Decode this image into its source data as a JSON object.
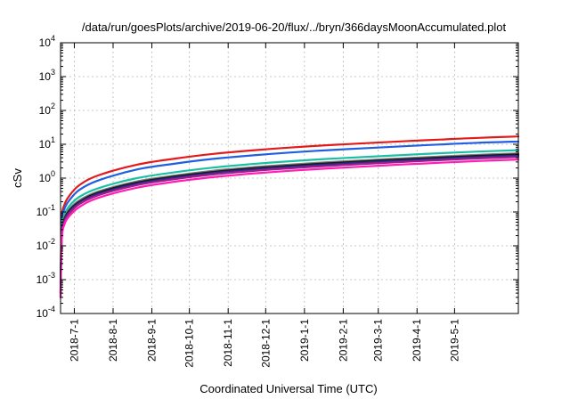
{
  "chart_data": {
    "type": "line",
    "title": "/data/run/goesPlots/archive/2019-06-20/flux/../bryn/366daysMoonAccumulated.plot",
    "xlabel": "Coordinated Universal Time (UTC)",
    "ylabel": "cSv",
    "y_scale": "log",
    "ylim": [
      0.0001,
      10000
    ],
    "xlim": [
      "2018-06-20",
      "2019-06-21"
    ],
    "grid": true,
    "legend": "none",
    "y_ticks": [
      {
        "value": 0.0001,
        "base": "10",
        "exp": "-4"
      },
      {
        "value": 0.001,
        "base": "10",
        "exp": "-3"
      },
      {
        "value": 0.01,
        "base": "10",
        "exp": "-2"
      },
      {
        "value": 0.1,
        "base": "10",
        "exp": "-1"
      },
      {
        "value": 1,
        "base": "10",
        "exp": "0"
      },
      {
        "value": 10,
        "base": "10",
        "exp": "1"
      },
      {
        "value": 100,
        "base": "10",
        "exp": "2"
      },
      {
        "value": 1000,
        "base": "10",
        "exp": "3"
      },
      {
        "value": 10000,
        "base": "10",
        "exp": "4"
      }
    ],
    "x_ticks": [
      {
        "date": "2018-07-01",
        "label": "2018-7-1"
      },
      {
        "date": "2018-08-01",
        "label": "2018-8-1"
      },
      {
        "date": "2018-09-01",
        "label": "2018-9-1"
      },
      {
        "date": "2018-10-01",
        "label": "2018-10-1"
      },
      {
        "date": "2018-11-01",
        "label": "2018-11-1"
      },
      {
        "date": "2018-12-01",
        "label": "2018-12-1"
      },
      {
        "date": "2019-01-01",
        "label": "2019-1-1"
      },
      {
        "date": "2019-02-01",
        "label": "2019-2-1"
      },
      {
        "date": "2019-03-01",
        "label": "2019-3-1"
      },
      {
        "date": "2019-04-01",
        "label": "2019-4-1"
      },
      {
        "date": "2019-05-01",
        "label": "2019-5-1"
      }
    ],
    "series": [
      {
        "color": "#e31a1c",
        "x": [
          "2018-06-20",
          "2018-06-21",
          "2018-06-23",
          "2018-06-27",
          "2018-07-05",
          "2018-07-20",
          "2018-08-20",
          "2018-09-20",
          "2018-10-20",
          "2018-11-20",
          "2018-12-20",
          "2019-01-20",
          "2019-02-20",
          "2019-03-20",
          "2019-04-20",
          "2019-05-20",
          "2019-06-21"
        ],
        "values": [
          0.0008,
          0.06,
          0.16,
          0.3,
          0.62,
          1.2,
          2.5,
          3.8,
          5.2,
          6.6,
          8.0,
          9.4,
          10.8,
          12.2,
          13.8,
          15.5,
          17.0
        ]
      },
      {
        "color": "#1f5fe0",
        "x": [
          "2018-06-20",
          "2018-06-21",
          "2018-06-23",
          "2018-06-27",
          "2018-07-05",
          "2018-07-20",
          "2018-08-20",
          "2018-09-20",
          "2018-10-20",
          "2018-11-20",
          "2018-12-20",
          "2019-01-20",
          "2019-02-20",
          "2019-03-20",
          "2019-04-20",
          "2019-05-20",
          "2019-06-21"
        ],
        "values": [
          0.0006,
          0.045,
          0.12,
          0.22,
          0.45,
          0.85,
          1.8,
          2.7,
          3.7,
          4.7,
          5.7,
          6.7,
          7.7,
          8.7,
          9.9,
          11.1,
          12.0
        ]
      },
      {
        "color": "#1cbfa6",
        "x": [
          "2018-06-20",
          "2018-06-21",
          "2018-06-23",
          "2018-06-27",
          "2018-07-05",
          "2018-07-20",
          "2018-08-20",
          "2018-09-20",
          "2018-10-20",
          "2018-11-20",
          "2018-12-20",
          "2019-01-20",
          "2019-02-20",
          "2019-03-20",
          "2019-04-20",
          "2019-05-20",
          "2019-06-21"
        ],
        "values": [
          0.0005,
          0.03,
          0.08,
          0.15,
          0.28,
          0.5,
          1.0,
          1.5,
          2.05,
          2.6,
          3.15,
          3.7,
          4.25,
          4.8,
          5.45,
          6.1,
          6.7
        ]
      },
      {
        "color": "#7a7a7a",
        "x": [
          "2018-06-20",
          "2018-06-21",
          "2018-06-23",
          "2018-06-27",
          "2018-07-05",
          "2018-07-20",
          "2018-08-20",
          "2018-09-20",
          "2018-10-20",
          "2018-11-20",
          "2018-12-20",
          "2019-01-20",
          "2019-02-20",
          "2019-03-20",
          "2019-04-20",
          "2019-05-20",
          "2019-06-21"
        ],
        "values": [
          0.0004,
          0.024,
          0.065,
          0.12,
          0.22,
          0.4,
          0.8,
          1.2,
          1.65,
          2.1,
          2.5,
          2.95,
          3.4,
          3.85,
          4.35,
          4.9,
          5.4
        ]
      },
      {
        "color": "#1a1a1a",
        "x": [
          "2018-06-20",
          "2018-06-21",
          "2018-06-23",
          "2018-06-27",
          "2018-07-05",
          "2018-07-20",
          "2018-08-20",
          "2018-09-20",
          "2018-10-20",
          "2018-11-20",
          "2018-12-20",
          "2019-01-20",
          "2019-02-20",
          "2019-03-20",
          "2019-04-20",
          "2019-05-20",
          "2019-06-21"
        ],
        "values": [
          0.0004,
          0.022,
          0.06,
          0.11,
          0.2,
          0.37,
          0.74,
          1.12,
          1.52,
          1.94,
          2.32,
          2.74,
          3.16,
          3.58,
          4.05,
          4.55,
          5.0
        ]
      },
      {
        "color": "#2c2a8c",
        "x": [
          "2018-06-20",
          "2018-06-21",
          "2018-06-23",
          "2018-06-27",
          "2018-07-05",
          "2018-07-20",
          "2018-08-20",
          "2018-09-20",
          "2018-10-20",
          "2018-11-20",
          "2018-12-20",
          "2019-01-20",
          "2019-02-20",
          "2019-03-20",
          "2019-04-20",
          "2019-05-20",
          "2019-06-21"
        ],
        "values": [
          0.0004,
          0.02,
          0.055,
          0.1,
          0.185,
          0.34,
          0.68,
          1.03,
          1.4,
          1.78,
          2.14,
          2.52,
          2.9,
          3.3,
          3.73,
          4.2,
          4.6
        ]
      },
      {
        "color": "#a01d8a",
        "x": [
          "2018-06-20",
          "2018-06-21",
          "2018-06-23",
          "2018-06-27",
          "2018-07-05",
          "2018-07-20",
          "2018-08-20",
          "2018-09-20",
          "2018-10-20",
          "2018-11-20",
          "2018-12-20",
          "2019-01-20",
          "2019-02-20",
          "2019-03-20",
          "2019-04-20",
          "2019-05-20",
          "2019-06-21"
        ],
        "values": [
          0.0003,
          0.018,
          0.05,
          0.09,
          0.17,
          0.31,
          0.62,
          0.94,
          1.28,
          1.62,
          1.95,
          2.3,
          2.65,
          3.0,
          3.4,
          3.82,
          4.2
        ]
      },
      {
        "color": "#ff1fb4",
        "x": [
          "2018-06-20",
          "2018-06-21",
          "2018-06-23",
          "2018-06-27",
          "2018-07-05",
          "2018-07-20",
          "2018-08-20",
          "2018-09-20",
          "2018-10-20",
          "2018-11-20",
          "2018-12-20",
          "2019-01-20",
          "2019-02-20",
          "2019-03-20",
          "2019-04-20",
          "2019-05-20",
          "2019-06-21"
        ],
        "values": [
          0.0003,
          0.015,
          0.042,
          0.075,
          0.14,
          0.26,
          0.52,
          0.79,
          1.07,
          1.36,
          1.64,
          1.93,
          2.22,
          2.52,
          2.85,
          3.2,
          3.55
        ]
      }
    ]
  }
}
